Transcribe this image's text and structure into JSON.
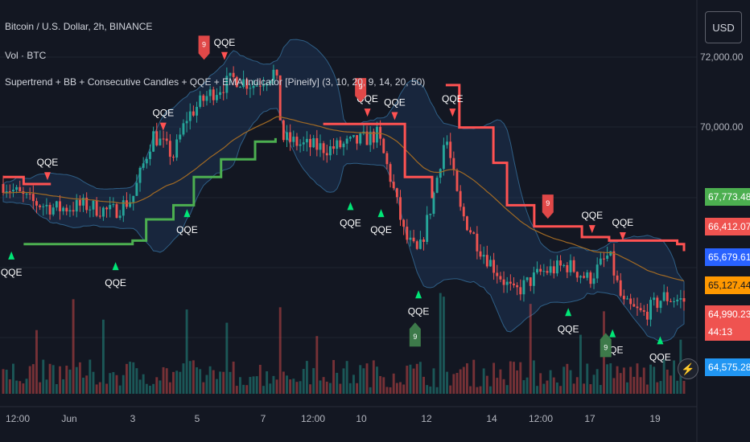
{
  "legend": {
    "main": "Bitcoin / U.S. Dollar, 2h, BINANCE",
    "volume": "Vol · BTC",
    "indicator": "Supertrend + BB + Consecutive Candles + QQE + EMA Indicator [Pineify] (3, 10, 20, 9, 14, 20, 50)"
  },
  "currency_button": "USD",
  "colors": {
    "background": "#131722",
    "up": "#26a69a",
    "down": "#ef5350",
    "supertrend_up": "#4caf50",
    "supertrend_down": "#ff5252",
    "bb_fill": "#1e3a5f",
    "bb_line": "#2f5f86",
    "ema": "#a16a24"
  },
  "chart_data": {
    "type": "candlestick",
    "title": "Bitcoin / U.S. Dollar, 2h, BINANCE",
    "y_axis_ticks": [
      "72,000.00",
      "70,000.00"
    ],
    "ylim": [
      63500,
      72600
    ],
    "x_axis_ticks": [
      "12:00",
      "Jun",
      "3",
      "5",
      "7",
      "12:00",
      "10",
      "12",
      "14",
      "12:00",
      "17",
      "19"
    ],
    "price_tags": [
      {
        "label": "67,773.48",
        "color": "#4caf50"
      },
      {
        "label": "66,412.07",
        "color": "#ef5350"
      },
      {
        "label": "65,679.61",
        "color": "#2962ff"
      },
      {
        "label": "65,127.44",
        "color": "#ff9800"
      },
      {
        "label": "64,990.23",
        "color": "#ef5350"
      },
      {
        "label": "44:13",
        "color": "#ef5350"
      },
      {
        "label": "64,575.28",
        "color": "#2196f3"
      }
    ],
    "close_path": [
      {
        "x": 0.0,
        "y": 68300
      },
      {
        "x": 0.04,
        "y": 67800
      },
      {
        "x": 0.08,
        "y": 67600
      },
      {
        "x": 0.12,
        "y": 67700
      },
      {
        "x": 0.16,
        "y": 67500
      },
      {
        "x": 0.19,
        "y": 67900
      },
      {
        "x": 0.22,
        "y": 69700
      },
      {
        "x": 0.25,
        "y": 69100
      },
      {
        "x": 0.27,
        "y": 70200
      },
      {
        "x": 0.3,
        "y": 70800
      },
      {
        "x": 0.34,
        "y": 71300
      },
      {
        "x": 0.37,
        "y": 71100
      },
      {
        "x": 0.4,
        "y": 71500
      },
      {
        "x": 0.41,
        "y": 69600
      },
      {
        "x": 0.44,
        "y": 69400
      },
      {
        "x": 0.48,
        "y": 69300
      },
      {
        "x": 0.52,
        "y": 69500
      },
      {
        "x": 0.55,
        "y": 69700
      },
      {
        "x": 0.57,
        "y": 68400
      },
      {
        "x": 0.59,
        "y": 66800
      },
      {
        "x": 0.61,
        "y": 66300
      },
      {
        "x": 0.63,
        "y": 67800
      },
      {
        "x": 0.65,
        "y": 69700
      },
      {
        "x": 0.67,
        "y": 67600
      },
      {
        "x": 0.7,
        "y": 66500
      },
      {
        "x": 0.73,
        "y": 65700
      },
      {
        "x": 0.75,
        "y": 65200
      },
      {
        "x": 0.79,
        "y": 65800
      },
      {
        "x": 0.83,
        "y": 66000
      },
      {
        "x": 0.86,
        "y": 65600
      },
      {
        "x": 0.89,
        "y": 66300
      },
      {
        "x": 0.91,
        "y": 64900
      },
      {
        "x": 0.94,
        "y": 64600
      },
      {
        "x": 0.97,
        "y": 65100
      },
      {
        "x": 1.0,
        "y": 64990
      }
    ],
    "supertrend": [
      {
        "trend": "down",
        "points": [
          {
            "x": 0.0,
            "y": 68500
          },
          {
            "x": 0.03,
            "y": 68300
          },
          {
            "x": 0.07,
            "y": 68300
          }
        ]
      },
      {
        "trend": "up",
        "points": [
          {
            "x": 0.03,
            "y": 66600
          },
          {
            "x": 0.15,
            "y": 66600
          },
          {
            "x": 0.19,
            "y": 66700
          },
          {
            "x": 0.21,
            "y": 67300
          },
          {
            "x": 0.25,
            "y": 67700
          },
          {
            "x": 0.28,
            "y": 68500
          },
          {
            "x": 0.32,
            "y": 69000
          },
          {
            "x": 0.37,
            "y": 69500
          },
          {
            "x": 0.4,
            "y": 69600
          }
        ]
      },
      {
        "trend": "down",
        "points": [
          {
            "x": 0.47,
            "y": 70000
          },
          {
            "x": 0.57,
            "y": 70000
          },
          {
            "x": 0.59,
            "y": 68500
          },
          {
            "x": 0.63,
            "y": 67900
          }
        ]
      },
      {
        "trend": "down",
        "points": [
          {
            "x": 0.65,
            "y": 71100
          },
          {
            "x": 0.67,
            "y": 69900
          },
          {
            "x": 0.72,
            "y": 68900
          },
          {
            "x": 0.74,
            "y": 67700
          },
          {
            "x": 0.78,
            "y": 67100
          },
          {
            "x": 0.85,
            "y": 66800
          },
          {
            "x": 0.89,
            "y": 66700
          },
          {
            "x": 0.99,
            "y": 66600
          },
          {
            "x": 1.0,
            "y": 66400
          }
        ]
      }
    ],
    "signals": [
      {
        "label": "QQE",
        "direction": "up",
        "x": 0.012,
        "y": 66300
      },
      {
        "label": "QQE",
        "direction": "down",
        "x": 0.065,
        "y": 68500
      },
      {
        "label": "QQE",
        "direction": "up",
        "x": 0.165,
        "y": 66000
      },
      {
        "label": "QQE",
        "direction": "down",
        "x": 0.235,
        "y": 69900
      },
      {
        "label": "QQE",
        "direction": "up",
        "x": 0.27,
        "y": 67500
      },
      {
        "label": "QQE",
        "direction": "down",
        "x": 0.325,
        "y": 71900
      },
      {
        "label": "QQE",
        "direction": "up",
        "x": 0.51,
        "y": 67700
      },
      {
        "label": "QQE",
        "direction": "down",
        "x": 0.535,
        "y": 70300
      },
      {
        "label": "QQE",
        "direction": "up",
        "x": 0.555,
        "y": 67500
      },
      {
        "label": "QQE",
        "direction": "down",
        "x": 0.575,
        "y": 70200
      },
      {
        "label": "QQE",
        "direction": "up",
        "x": 0.61,
        "y": 65200
      },
      {
        "label": "QQE",
        "direction": "down",
        "x": 0.66,
        "y": 70300
      },
      {
        "label": "QQE",
        "direction": "up",
        "x": 0.83,
        "y": 64700
      },
      {
        "label": "QQE",
        "direction": "down",
        "x": 0.865,
        "y": 67000
      },
      {
        "label": "QQE",
        "direction": "up",
        "x": 0.895,
        "y": 64100
      },
      {
        "label": "QQE",
        "direction": "down",
        "x": 0.91,
        "y": 66800
      },
      {
        "label": "QQE",
        "direction": "up",
        "x": 0.965,
        "y": 63900
      }
    ],
    "consecutive_markers": [
      {
        "label": "9",
        "direction": "down",
        "x": 0.295,
        "y": 72000
      },
      {
        "label": "9",
        "direction": "down",
        "x": 0.525,
        "y": 70800
      },
      {
        "label": "9",
        "direction": "up",
        "x": 0.605,
        "y": 64200
      },
      {
        "label": "9",
        "direction": "down",
        "x": 0.8,
        "y": 67500
      },
      {
        "label": "9",
        "direction": "up",
        "x": 0.885,
        "y": 63900
      }
    ]
  }
}
